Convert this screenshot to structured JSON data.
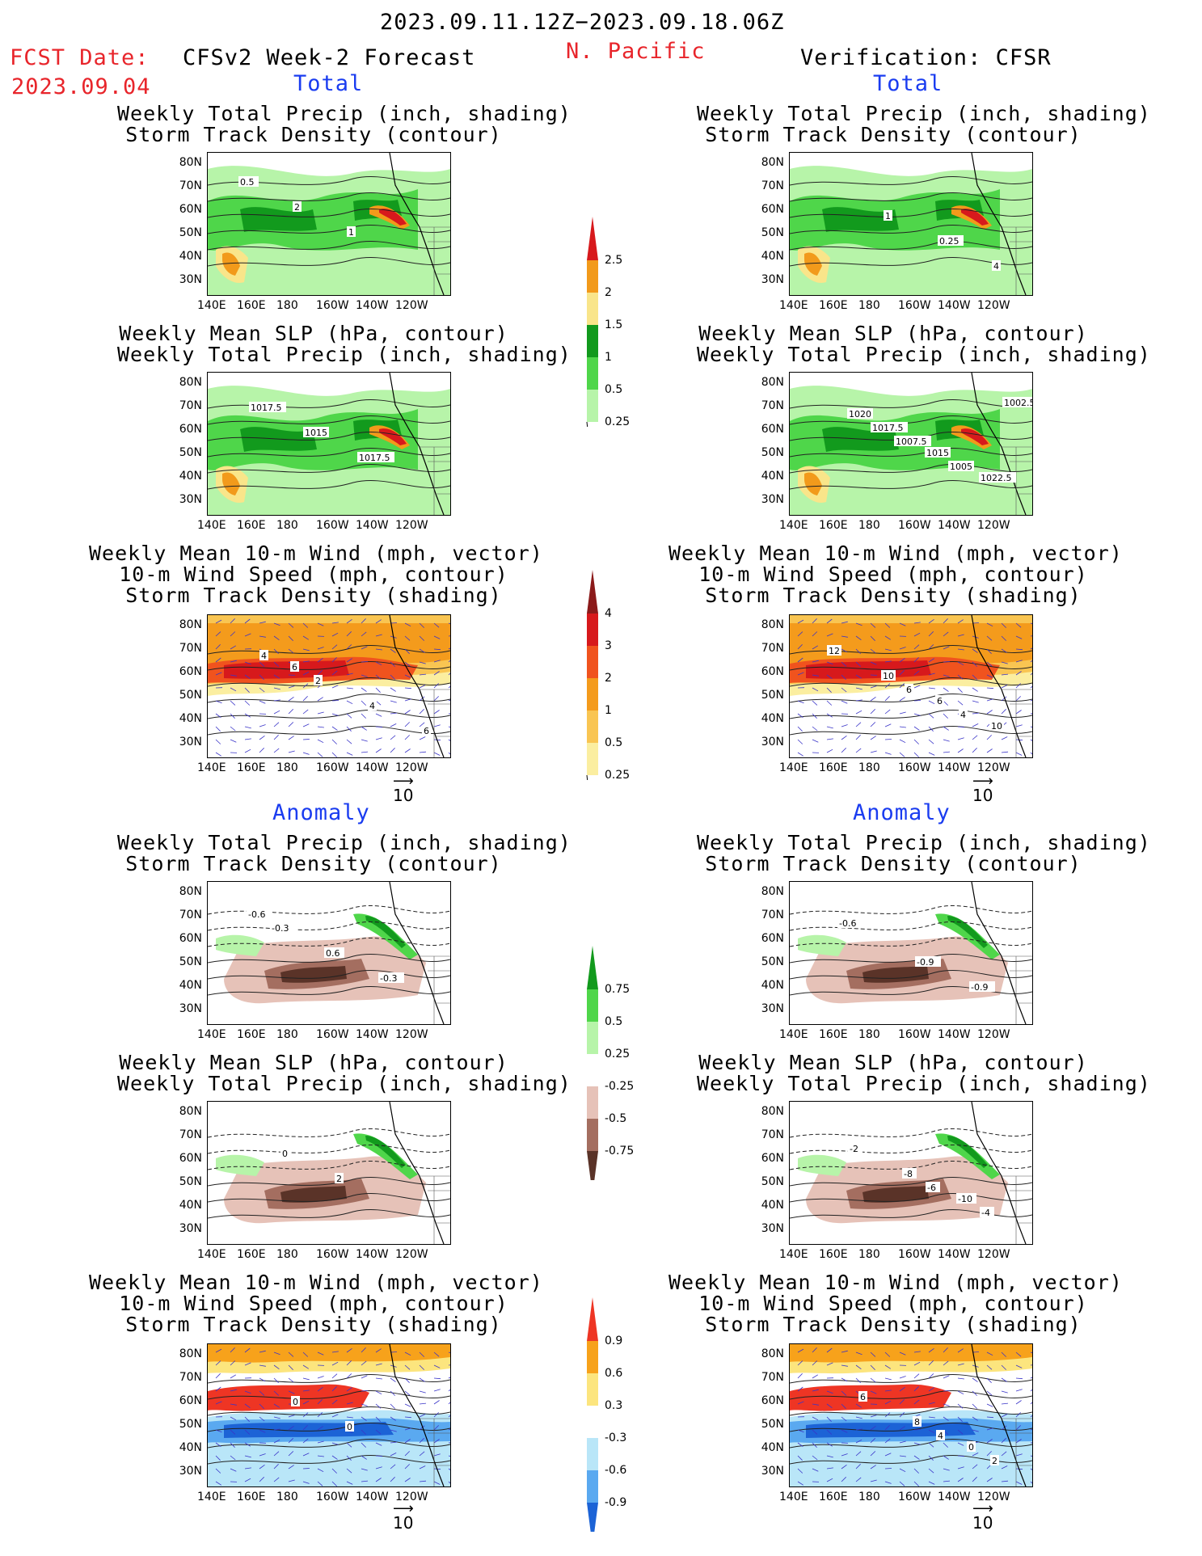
{
  "header": {
    "period": "2023.09.11.12Z−2023.09.18.06Z",
    "fcst_label": "FCST Date:",
    "fcst_date": "2023.09.04",
    "model": "CFSv2 Week-2 Forecast",
    "region": "N. Pacific",
    "verification": "Verification: CFSR"
  },
  "sections": {
    "total": "Total",
    "anomaly": "Anomaly"
  },
  "titles": {
    "precip_storm": [
      "Weekly Total Precip (inch, shading)",
      "Storm Track Density (contour)"
    ],
    "slp_precip": [
      "Weekly Mean SLP (hPa, contour)",
      "Weekly Total Precip (inch, shading)"
    ],
    "wind_storm": [
      "Weekly Mean 10-m Wind (mph, vector)",
      "10-m Wind Speed (mph, contour)",
      "Storm Track Density (shading)"
    ]
  },
  "axes": {
    "lat_labels": [
      "80N",
      "70N",
      "60N",
      "50N",
      "40N",
      "30N"
    ],
    "lon_labels": [
      "140E",
      "160E",
      "180",
      "160W",
      "140W",
      "120W"
    ]
  },
  "vector_ref": "10",
  "colorbars": {
    "precip_total": {
      "labels": [
        "2.5",
        "2",
        "1.5",
        "1",
        "0.5",
        "0.25"
      ],
      "colors": [
        "#d7191c",
        "#f29a1b",
        "#f9e58a",
        "#129a1d",
        "#4fd64a",
        "#b7f4a9"
      ]
    },
    "storm_total": {
      "labels": [
        "4",
        "3",
        "2",
        "1",
        "0.5",
        "0.25"
      ],
      "colors": [
        "#8b1a1a",
        "#d7191c",
        "#f0531e",
        "#f49b1c",
        "#f9c552",
        "#fbeea0"
      ]
    },
    "precip_anom": {
      "labels": [
        "0.75",
        "0.5",
        "0.25",
        "-0.25",
        "-0.5",
        "-0.75"
      ],
      "colors": [
        "#129a1d",
        "#4fd64a",
        "#b7f4a9",
        "#ffffff",
        "#e6c2b8",
        "#a46e60",
        "#5a3328"
      ]
    },
    "storm_anom": {
      "labels": [
        "0.9",
        "0.6",
        "0.3",
        "-0.3",
        "-0.6",
        "-0.9"
      ],
      "colors": [
        "#ee3524",
        "#f7a21b",
        "#fce57e",
        "#ffffff",
        "#b9e6f8",
        "#5aa9f0",
        "#1c63d6"
      ]
    }
  },
  "contour_labels": {
    "l_precip_total": [
      "0.5",
      "2",
      "1"
    ],
    "r_precip_total": [
      "1",
      "0.25",
      "4"
    ],
    "l_slp_total": [
      "1017.5",
      "1015",
      "1017.5"
    ],
    "r_slp_total": [
      "1007.5",
      "1005",
      "1002.5",
      "1017.5",
      "1015",
      "1022.5",
      "1020"
    ],
    "l_wind_total": [
      "4",
      "2",
      "4",
      "6",
      "6"
    ],
    "r_wind_total": [
      "6",
      "4",
      "12",
      "10",
      "6",
      "10"
    ],
    "l_precip_anom": [
      "-0.3",
      "0.6",
      "-0.3",
      "-0.6"
    ],
    "r_precip_anom": [
      "-0.9",
      "-0.9",
      "-0.6"
    ],
    "l_slp_anom": [
      "0",
      "2"
    ],
    "r_slp_anom": [
      "-6",
      "-4",
      "-2",
      "-8",
      "-10"
    ],
    "l_wind_anom": [
      "0",
      "0"
    ],
    "r_wind_anom": [
      "4",
      "2",
      "6",
      "8",
      "0"
    ]
  }
}
